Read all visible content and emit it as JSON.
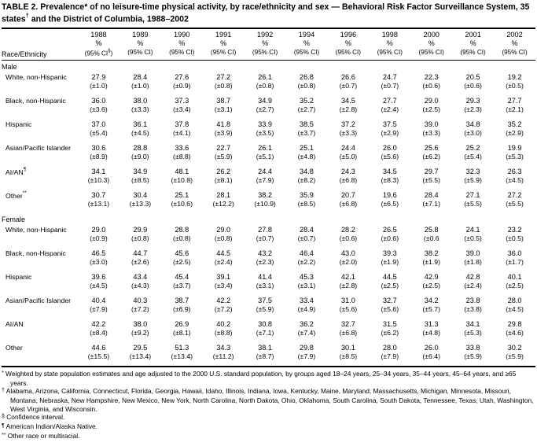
{
  "title": {
    "p1": "TABLE 2. Prevalence* of no leisure-time physical activity, by race/ethnicity and sex — Behavioral Risk Factor Surveillance System, 35 states",
    "s1": "†",
    "p2": " and the District of Columbia, 1988–2002"
  },
  "columns": {
    "race_label": "Race/Ethnicity",
    "years": [
      "1988",
      "1989",
      "1990",
      "1991",
      "1992",
      "1994",
      "1996",
      "1998",
      "2000",
      "2001",
      "2002"
    ],
    "pct_label": "%",
    "ci_label": "(95% CI)",
    "ci_first": {
      "pre": "(95% CI",
      "sup": "§",
      "post": ")"
    }
  },
  "sections": [
    {
      "label": "Male",
      "rows": [
        {
          "race": "White, non-Hispanic",
          "sup": "",
          "values": [
            "27.9",
            "28.4",
            "27.6",
            "27.2",
            "26.1",
            "26.8",
            "26.6",
            "24.7",
            "22.3",
            "20.5",
            "19.2"
          ],
          "cis": [
            "(±1.0)",
            "(±1.0)",
            "(±0.9)",
            "(±0.8)",
            "(±0.8)",
            "(±0.8)",
            "(±0.7)",
            "(±0.7)",
            "(±0.6)",
            "(±0.6)",
            "(±0.5)"
          ]
        },
        {
          "race": "Black, non-Hispanic",
          "sup": "",
          "values": [
            "36.0",
            "38.0",
            "37.3",
            "38.7",
            "34.9",
            "35.2",
            "34.5",
            "27.7",
            "29.0",
            "29.3",
            "27.7"
          ],
          "cis": [
            "(±3.6)",
            "(±3.3)",
            "(±3.4)",
            "(±3.1)",
            "(±2.7)",
            "(±2.7)",
            "(±2.8)",
            "(±2.4)",
            "(±2.5)",
            "(±2.3)",
            "(±2.1)"
          ]
        },
        {
          "race": "Hispanic",
          "sup": "",
          "values": [
            "37.0",
            "36.1",
            "37.8",
            "41.8",
            "33.9",
            "38.5",
            "37.2",
            "37.5",
            "39.0",
            "34.8",
            "35.2"
          ],
          "cis": [
            "(±5.4)",
            "(±4.5)",
            "(±4.1)",
            "(±3.9)",
            "(±3.5)",
            "(±3.7)",
            "(±3.3)",
            "(±2.9)",
            "(±3.3)",
            "(±3.0)",
            "(±2.9)"
          ]
        },
        {
          "race": "Asian/Pacific Islander",
          "sup": "",
          "values": [
            "30.6",
            "28.8",
            "33.6",
            "22.7",
            "26.1",
            "25.1",
            "24.4",
            "26.0",
            "25.6",
            "25.2",
            "19.9"
          ],
          "cis": [
            "(±8.9)",
            "(±9.0)",
            "(±8.8)",
            "(±5.9)",
            "(±5.1)",
            "(±4.8)",
            "(±5.0)",
            "(±5.6)",
            "(±6.2)",
            "(±5.4)",
            "(±5.3)"
          ]
        },
        {
          "race": "AI/AN",
          "sup": "¶",
          "values": [
            "34.1",
            "34.9",
            "48.1",
            "26.2",
            "24.4",
            "34.8",
            "24.3",
            "34.5",
            "29.7",
            "32.3",
            "26.3"
          ],
          "cis": [
            "(±10.3)",
            "(±8.5)",
            "(±10.8)",
            "(±8.1)",
            "(±7.9)",
            "(±8.2)",
            "(±6.8)",
            "(±8.3)",
            "(±5.5)",
            "(±5.9)",
            "(±4.5)"
          ]
        },
        {
          "race": "Other",
          "sup": "**",
          "values": [
            "30.7",
            "30.4",
            "25.1",
            "28.1",
            "38.2",
            "35.9",
            "20.7",
            "19.6",
            "28.4",
            "27.1",
            "27.2"
          ],
          "cis": [
            "(±13.1)",
            "(±13.3)",
            "(±10.6)",
            "(±12.2)",
            "(±10.9)",
            "(±8.5)",
            "(±6.8)",
            "(±6.5)",
            "(±7.1)",
            "(±5.5)",
            "(±5.5)"
          ]
        }
      ]
    },
    {
      "label": "Female",
      "rows": [
        {
          "race": "White, non-Hispanic",
          "sup": "",
          "values": [
            "29.0",
            "29.9",
            "28.8",
            "29.0",
            "27.8",
            "28.4",
            "28.2",
            "26.5",
            "25.8",
            "24.1",
            "23.2"
          ],
          "cis": [
            "(±0.9)",
            "(±0.8)",
            "(±0.8)",
            "(±0.8)",
            "(±0.7)",
            "(±0.7)",
            "(±0.6)",
            "(±0.6)",
            "(±0.6",
            "(±0.5)",
            "(±0.5)"
          ]
        },
        {
          "race": "Black, non-Hispanic",
          "sup": "",
          "values": [
            "46.5",
            "44.7",
            "45.6",
            "44.5",
            "43.2",
            "46.4",
            "43.0",
            "39.3",
            "38.2",
            "39.0",
            "36.0"
          ],
          "cis": [
            "(±3.0)",
            "(±2.6)",
            "(±2.5)",
            "(±2.4)",
            "(±2.3)",
            "(±2.2)",
            "(±2.0)",
            "(±1.9)",
            "(±1.9)",
            "(±1.8)",
            "(±1.7)"
          ]
        },
        {
          "race": "Hispanic",
          "sup": "",
          "values": [
            "39.6",
            "43.4",
            "45.4",
            "39.1",
            "41.4",
            "45.3",
            "42.1",
            "44.5",
            "42.9",
            "42.8",
            "40.1"
          ],
          "cis": [
            "(±4.5)",
            "(±4.3)",
            "(±3.7)",
            "(±3.4)",
            "(±3.1)",
            "(±3.1)",
            "(±2.8)",
            "(±2.5)",
            "(±2.5)",
            "(±2.4)",
            "(±2.5)"
          ]
        },
        {
          "race": "Asian/Pacific Islander",
          "sup": "",
          "values": [
            "40.4",
            "40.3",
            "38.7",
            "42.2",
            "37.5",
            "33.4",
            "31.0",
            "32.7",
            "34.2",
            "23.8",
            "28.0"
          ],
          "cis": [
            "(±7.9)",
            "(±7.2)",
            "(±6.9)",
            "(±7.2)",
            "(±5.9)",
            "(±4.9)",
            "(±5.6)",
            "(±5.6)",
            "(±5.7)",
            "(±3.8)",
            "(±4.5)"
          ]
        },
        {
          "race": "AI/AN",
          "sup": "",
          "values": [
            "42.2",
            "38.0",
            "26.9",
            "40.2",
            "30.8",
            "36.2",
            "32.7",
            "31.5",
            "31.3",
            "34.1",
            "29.8"
          ],
          "cis": [
            "(±8.4)",
            "(±9.2)",
            "(±8.1)",
            "(±8.8)",
            "(±7.1)",
            "(±7.4)",
            "(±6.8)",
            "(±6.2)",
            "(±4.8)",
            "(±5.3)",
            "(±4.6)"
          ]
        },
        {
          "race": "Other",
          "sup": "",
          "values": [
            "44.6",
            "29.5",
            "51.3",
            "34.3",
            "38.1",
            "29.8",
            "30.1",
            "28.0",
            "26.0",
            "33.8",
            "30.2"
          ],
          "cis": [
            "(±15.5)",
            "(±13.4)",
            "(±13.4)",
            "(±11.2)",
            "(±8.7)",
            "(±7.9)",
            "(±8.5)",
            "(±7.9)",
            "(±6.4)",
            "(±5.9)",
            "(±5.9)"
          ]
        }
      ]
    }
  ],
  "footnotes": [
    {
      "marker": "*",
      "text": "Weighted by state population estimates and age adjusted to the 2000 U.S. standard population, by groups aged 18–24 years, 25–34 years, 35–44 years, 45–64 years, and ≥65 years."
    },
    {
      "marker": "†",
      "text": "Alabama, Arizona, California, Connecticut, Florida, Georgia, Hawaii, Idaho, Illinois, Indiana, Iowa, Kentucky, Maine, Maryland, Massachusetts, Michigan, Minnesota, Missouri, Montana, Nebraska, New Hampshire, New Mexico, New York, North Carolina, North Dakota, Ohio, Oklahoma, South Carolina, South Dakota, Tennessee, Texas, Utah, Washington, West Virginia, and Wisconsin."
    },
    {
      "marker": "§",
      "text": "Confidence interval."
    },
    {
      "marker": "¶",
      "text": "American Indian/Alaska Native."
    },
    {
      "marker": "**",
      "text": "Other race or multiracial."
    }
  ]
}
